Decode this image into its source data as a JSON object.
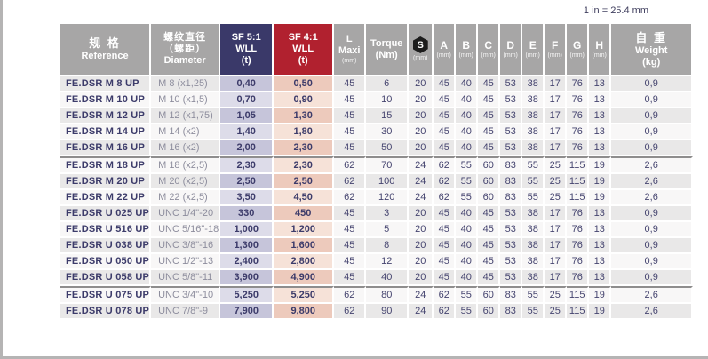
{
  "note": "1 in = 25.4 mm",
  "colors": {
    "header_gray": "#a7a6a6",
    "header_navy": "#3a3969",
    "header_red": "#b1212f",
    "tint_wll5_dark": "#c6c5da",
    "tint_wll5_light": "#dddce9",
    "tint_wll4_dark": "#edcabc",
    "tint_wll4_light": "#f6e2d8",
    "row_gray": "#e9e8e8",
    "row_light": "#f8f7f7",
    "text_navy": "#3c3b6a"
  },
  "table": {
    "headers": {
      "reference": {
        "zh": "规 格",
        "en": "Reference"
      },
      "diameter": {
        "zh_line1": "螺纹直径",
        "zh_line2": "（螺距）",
        "en": "Diameter"
      },
      "wll5": {
        "l1": "SF 5:1",
        "l2": "WLL",
        "l3": "(t)"
      },
      "wll4": {
        "l1": "SF 4:1",
        "l2": "WLL",
        "l3": "(t)"
      },
      "lmaxi": {
        "l1": "L",
        "l2": "Maxi",
        "unit": "(mm)"
      },
      "torque": {
        "l1": "Torque",
        "l2": "(Nm)"
      },
      "s": {
        "letter": "S",
        "unit": "(mm)"
      },
      "dims": [
        "A",
        "B",
        "C",
        "D",
        "E",
        "F",
        "G",
        "H"
      ],
      "mm_unit": "(mm)",
      "weight": {
        "zh": "自 重",
        "en": "Weight",
        "en2": "(kg)"
      }
    },
    "group_breaks": [
      5,
      13
    ],
    "rows": [
      [
        "FE.DSR M 8 UP",
        "M 8 (x1,25)",
        "0,40",
        "0,50",
        "45",
        "6",
        "20",
        "45",
        "40",
        "45",
        "53",
        "38",
        "17",
        "76",
        "13",
        "0,9"
      ],
      [
        "FE.DSR M 10 UP",
        "M 10 (x1,5)",
        "0,70",
        "0,90",
        "45",
        "10",
        "20",
        "45",
        "40",
        "45",
        "53",
        "38",
        "17",
        "76",
        "13",
        "0,9"
      ],
      [
        "FE.DSR M 12 UP",
        "M 12 (x1,75)",
        "1,05",
        "1,30",
        "45",
        "15",
        "20",
        "45",
        "40",
        "45",
        "53",
        "38",
        "17",
        "76",
        "13",
        "0,9"
      ],
      [
        "FE.DSR M 14 UP",
        "M 14 (x2)",
        "1,40",
        "1,80",
        "45",
        "30",
        "20",
        "45",
        "40",
        "45",
        "53",
        "38",
        "17",
        "76",
        "13",
        "0,9"
      ],
      [
        "FE.DSR M 16 UP",
        "M 16 (x2)",
        "2,00",
        "2,30",
        "45",
        "50",
        "20",
        "45",
        "40",
        "45",
        "53",
        "38",
        "17",
        "76",
        "13",
        "0,9"
      ],
      [
        "FE.DSR M 18 UP",
        "M 18 (x2,5)",
        "2,30",
        "2,30",
        "62",
        "70",
        "24",
        "62",
        "55",
        "60",
        "83",
        "55",
        "25",
        "115",
        "19",
        "2,6"
      ],
      [
        "FE.DSR M 20 UP",
        "M 20 (x2,5)",
        "2,50",
        "2,50",
        "62",
        "100",
        "24",
        "62",
        "55",
        "60",
        "83",
        "55",
        "25",
        "115",
        "19",
        "2,6"
      ],
      [
        "FE.DSR M 22 UP",
        "M 22 (x2,5)",
        "3,50",
        "4,50",
        "62",
        "120",
        "24",
        "62",
        "55",
        "60",
        "83",
        "55",
        "25",
        "115",
        "19",
        "2,6"
      ],
      [
        "FE.DSR U 025 UP",
        "UNC 1/4\"-20",
        "330",
        "450",
        "45",
        "3",
        "20",
        "45",
        "40",
        "45",
        "53",
        "38",
        "17",
        "76",
        "13",
        "0,9"
      ],
      [
        "FE.DSR U 516 UP",
        "UNC 5/16\"-18",
        "1,000",
        "1,200",
        "45",
        "5",
        "20",
        "45",
        "40",
        "45",
        "53",
        "38",
        "17",
        "76",
        "13",
        "0,9"
      ],
      [
        "FE.DSR U 038 UP",
        "UNC 3/8\"-16",
        "1,300",
        "1,600",
        "45",
        "8",
        "20",
        "45",
        "40",
        "45",
        "53",
        "38",
        "17",
        "76",
        "13",
        "0,9"
      ],
      [
        "FE.DSR U 050 UP",
        "UNC 1/2\"-13",
        "2,400",
        "2,800",
        "45",
        "12",
        "20",
        "45",
        "40",
        "45",
        "53",
        "38",
        "17",
        "76",
        "13",
        "0,9"
      ],
      [
        "FE.DSR U 058 UP",
        "UNC 5/8\"-11",
        "3,900",
        "4,900",
        "45",
        "40",
        "20",
        "45",
        "40",
        "45",
        "53",
        "38",
        "17",
        "76",
        "13",
        "0,9"
      ],
      [
        "FE.DSR U 075 UP",
        "UNC 3/4\"-10",
        "5,250",
        "5,250",
        "62",
        "80",
        "24",
        "62",
        "55",
        "60",
        "83",
        "55",
        "25",
        "115",
        "19",
        "2,6"
      ],
      [
        "FE.DSR U 078 UP",
        "UNC 7/8\"-9",
        "7,900",
        "9,800",
        "62",
        "90",
        "24",
        "62",
        "55",
        "60",
        "83",
        "55",
        "25",
        "115",
        "19",
        "2,6"
      ]
    ]
  }
}
